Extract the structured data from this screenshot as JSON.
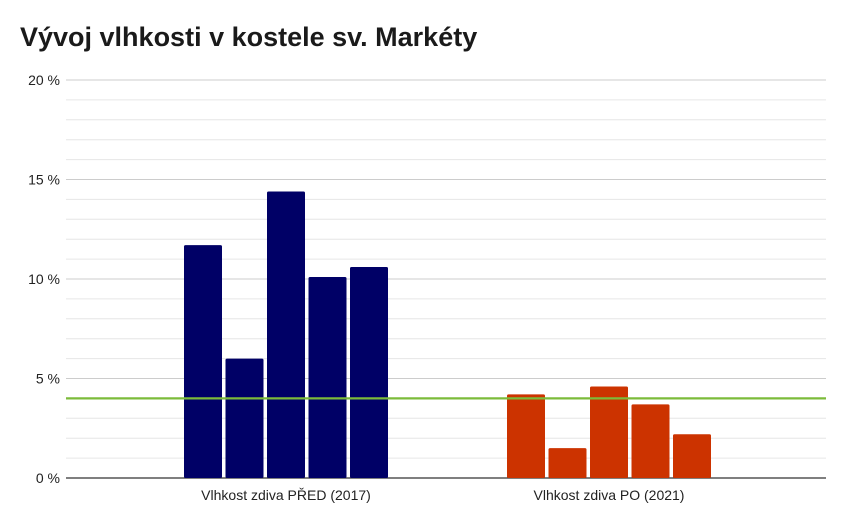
{
  "chart_data": {
    "type": "bar",
    "title": "Vývoj vlhkosti v kostele sv. Markéty",
    "categories": [
      "Vlhkost zdiva PŘED (2017)",
      "Vlhkost zdiva PO (2021)"
    ],
    "groups": [
      {
        "category": "Vlhkost zdiva PŘED (2017)",
        "values": [
          11.7,
          6.0,
          14.4,
          10.1,
          10.6
        ],
        "color": "#000066"
      },
      {
        "category": "Vlhkost zdiva PO (2021)",
        "values": [
          4.2,
          1.5,
          4.6,
          3.7,
          2.2
        ],
        "color": "#cc3300"
      }
    ],
    "threshold": {
      "value": 4,
      "color": "#7cbb3a"
    },
    "ylim": [
      0,
      20
    ],
    "y_ticks": [
      {
        "value": 0,
        "label": "0 %"
      },
      {
        "value": 5,
        "label": "5 %"
      },
      {
        "value": 10,
        "label": "10 %"
      },
      {
        "value": 15,
        "label": "15 %"
      },
      {
        "value": 20,
        "label": "20 %"
      }
    ],
    "minor_grid_step": 1,
    "xlabel": "",
    "ylabel": "",
    "legend": "none"
  }
}
